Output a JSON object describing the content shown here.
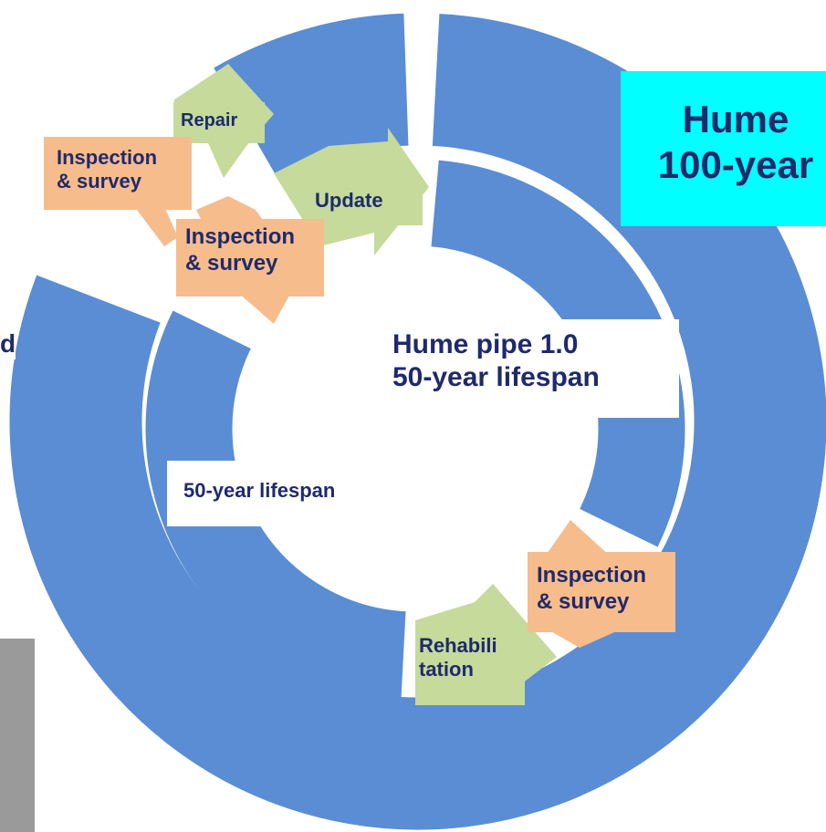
{
  "title_box": {
    "lines": [
      "Hume",
      "100-year"
    ]
  },
  "center_box": {
    "lines": [
      "Hume pipe 1.0",
      "50-year lifespan"
    ]
  },
  "steps": [
    {
      "lines": [
        "Repair"
      ]
    },
    {
      "lines": [
        "Inspection",
        "& survey"
      ]
    },
    {
      "lines": [
        "Update"
      ]
    },
    {
      "lines": [
        "Inspection",
        "& survey"
      ]
    },
    {
      "lines": [
        "50-year lifespan"
      ]
    },
    {
      "lines": [
        "Inspection",
        "& survey"
      ]
    },
    {
      "lines": [
        "Rehabili",
        "tation"
      ]
    }
  ],
  "edge_text": "d"
}
